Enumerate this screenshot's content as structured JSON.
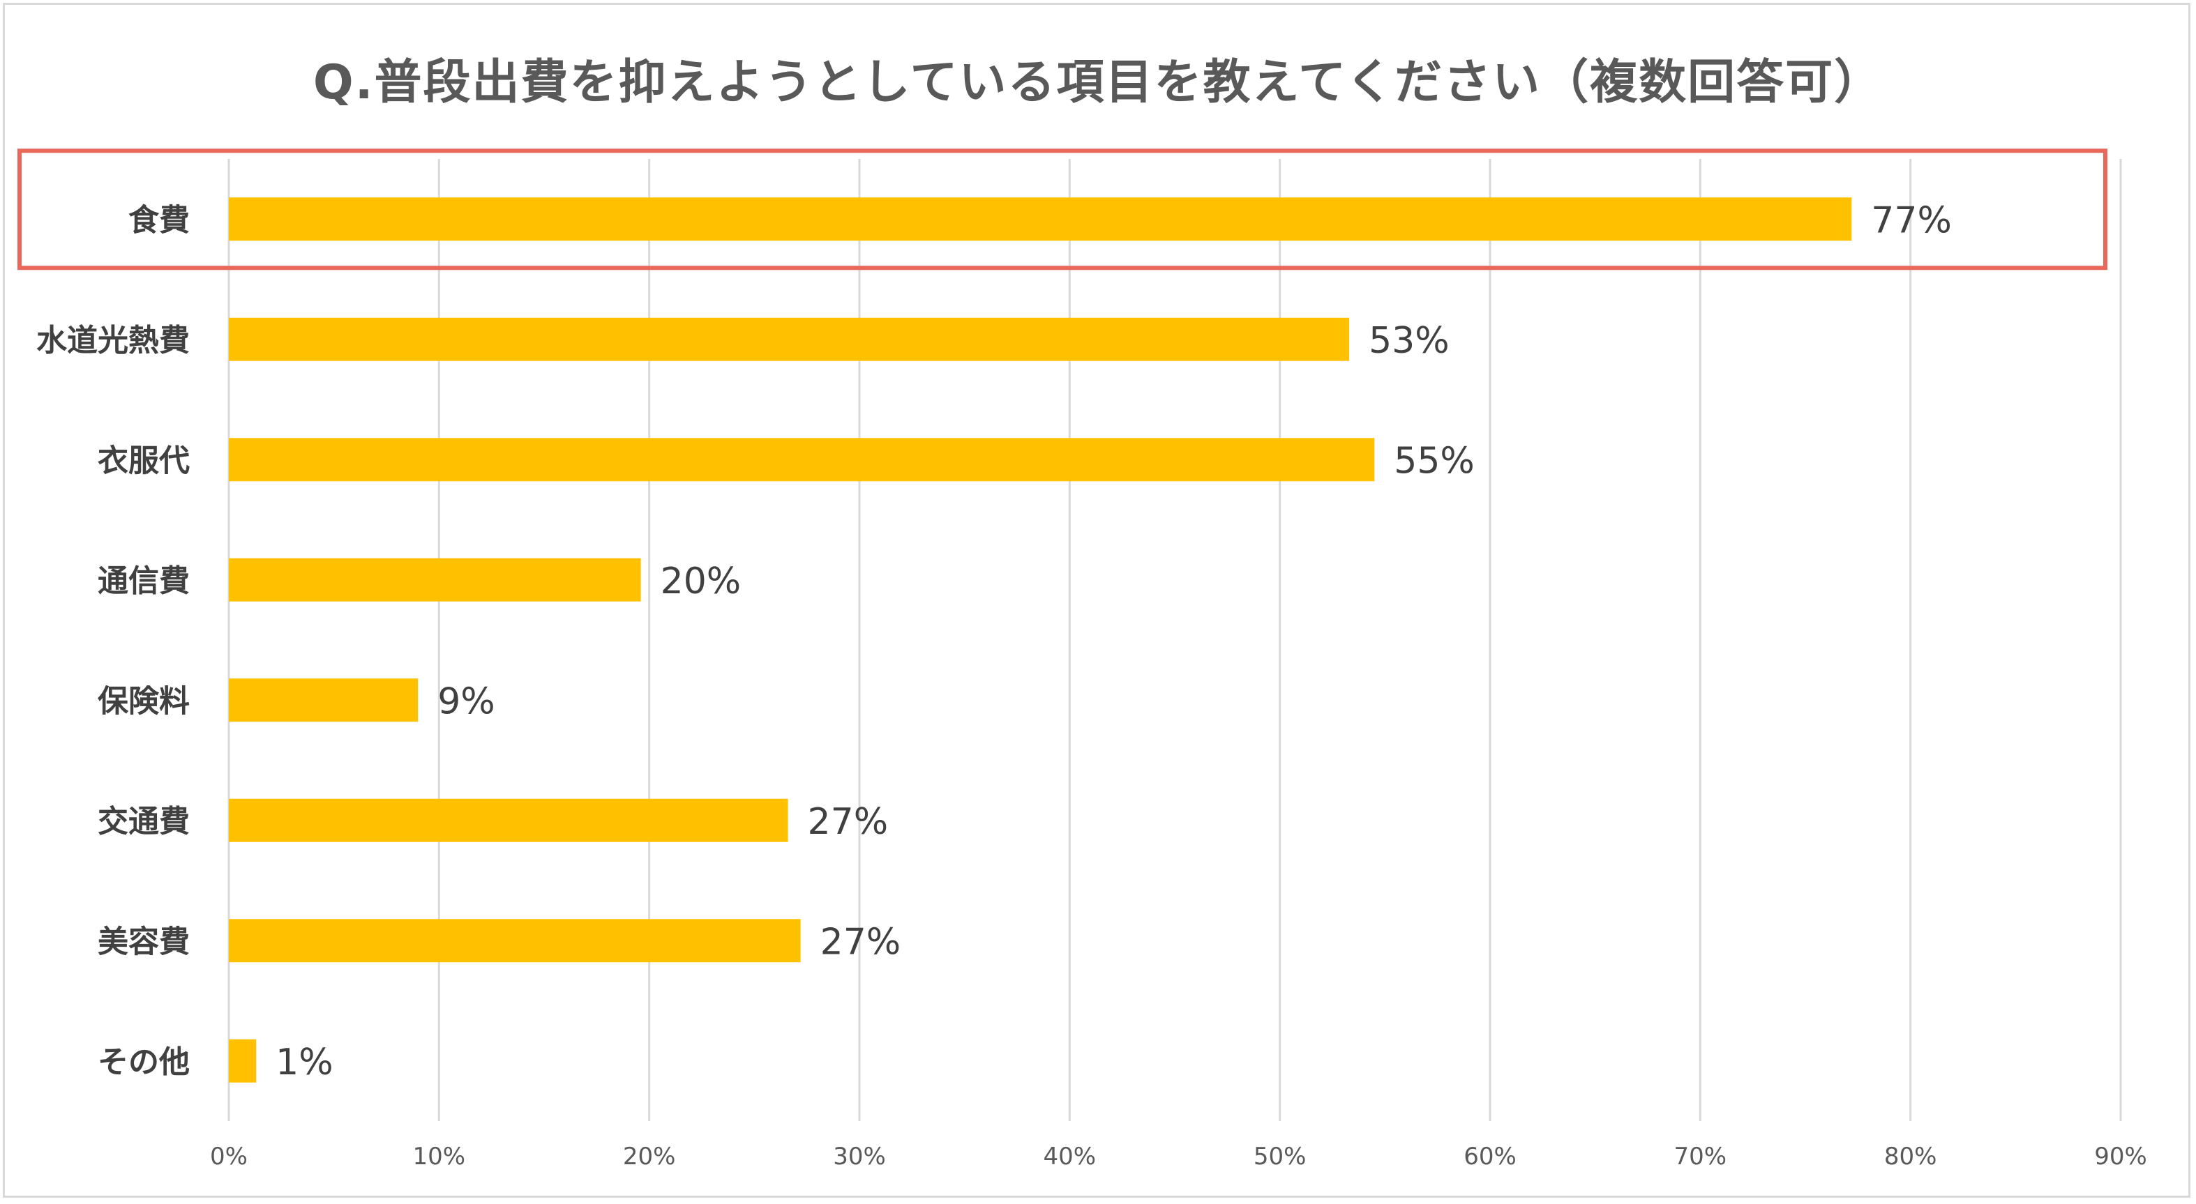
{
  "chart_data": {
    "type": "bar",
    "orientation": "horizontal",
    "title": "Q.普段出費を抑えようとしている項目を教えてください（複数回答可）",
    "categories": [
      "食費",
      "水道光熱費",
      "衣服代",
      "通信費",
      "保険料",
      "交通費",
      "美容費",
      "その他"
    ],
    "values": [
      77.2,
      53.3,
      54.5,
      19.6,
      9.0,
      26.6,
      27.2,
      1.3
    ],
    "data_labels": [
      "77%",
      "53%",
      "55%",
      "20%",
      "9%",
      "27%",
      "27%",
      "1%"
    ],
    "xlim": [
      0,
      90
    ],
    "x_ticks": [
      0,
      10,
      20,
      30,
      40,
      50,
      60,
      70,
      80,
      90
    ],
    "x_tick_labels": [
      "0%",
      "10%",
      "20%",
      "30%",
      "40%",
      "50%",
      "60%",
      "70%",
      "80%",
      "90%"
    ],
    "grid": true,
    "highlighted_category": "食費",
    "colors": {
      "bar": "#FFC000",
      "gridline": "#d9d9d9",
      "highlight_border": "#E8695A",
      "text": "#404040"
    }
  }
}
